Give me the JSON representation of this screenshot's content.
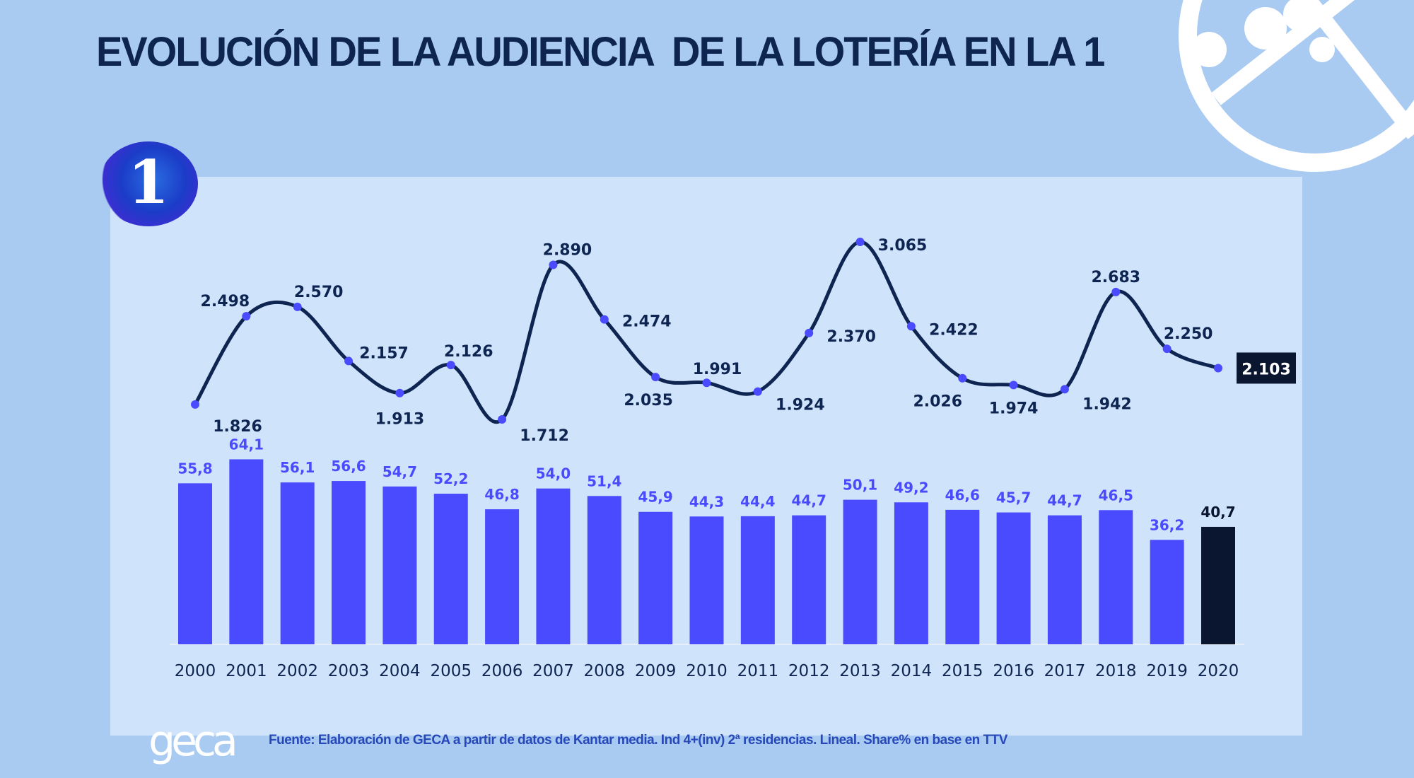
{
  "title": "EVOLUCIÓN DE LA AUDIENCIA  DE LA LOTERÍA EN LA 1",
  "logo_text": "1",
  "brand": "geca",
  "footer": "Fuente: Elaboración de GECA a partir de datos de Kantar media. Ind 4+(inv) 2ª residencias. Lineal. Share% en base en TTV",
  "chart_data": {
    "type": "bar+line",
    "categories": [
      "2000",
      "2001",
      "2002",
      "2003",
      "2004",
      "2005",
      "2006",
      "2007",
      "2008",
      "2009",
      "2010",
      "2011",
      "2012",
      "2013",
      "2014",
      "2015",
      "2016",
      "2017",
      "2018",
      "2019",
      "2020"
    ],
    "series": [
      {
        "type": "line",
        "values": [
          1826,
          2498,
          2570,
          2157,
          1913,
          2126,
          1712,
          2890,
          2474,
          2035,
          1991,
          1924,
          2370,
          3065,
          2422,
          2026,
          1974,
          1942,
          2683,
          2250,
          2103
        ],
        "labels": [
          "1.826",
          "2.498",
          "2.570",
          "2.157",
          "1.913",
          "2.126",
          "1.712",
          "2.890",
          "2.474",
          "2.035",
          "1.991",
          "1.924",
          "2.370",
          "3.065",
          "2.422",
          "2.026",
          "1.974",
          "1.942",
          "2.683",
          "2.250",
          "2.103"
        ]
      },
      {
        "type": "bar",
        "values": [
          55.8,
          64.1,
          56.1,
          56.6,
          54.7,
          52.2,
          46.8,
          54.0,
          51.4,
          45.9,
          44.3,
          44.4,
          44.7,
          50.1,
          49.2,
          46.6,
          45.7,
          44.7,
          46.5,
          36.2,
          40.7
        ],
        "labels": [
          "55,8",
          "64,1",
          "56,1",
          "56,6",
          "54,7",
          "52,2",
          "46,8",
          "54,0",
          "51,4",
          "45,9",
          "44,3",
          "44,4",
          "44,7",
          "50,1",
          "49,2",
          "46,6",
          "45,7",
          "44,7",
          "46,5",
          "36,2",
          "40,7"
        ]
      }
    ],
    "highlight_category": "2020",
    "colors": {
      "bar": "#4a4bff",
      "highlight_bar": "#0a1530",
      "line": "#0d2550",
      "point": "#4a4bff",
      "bar_label": "#4a4bff",
      "background": "#a9cbf2",
      "panel": "#cfe3fb"
    },
    "grid": false
  }
}
